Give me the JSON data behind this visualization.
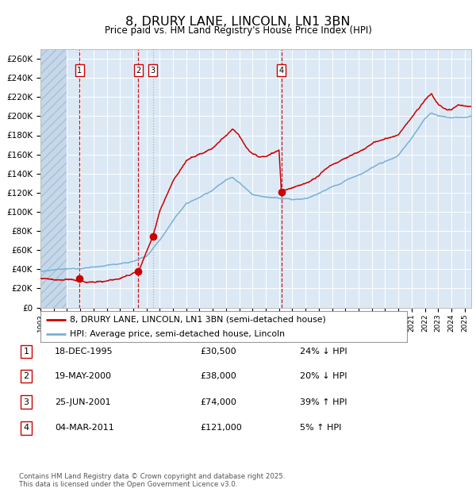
{
  "title": "8, DRURY LANE, LINCOLN, LN1 3BN",
  "subtitle": "Price paid vs. HM Land Registry's House Price Index (HPI)",
  "background_color": "#ffffff",
  "plot_bg_color": "#dce9f5",
  "grid_color": "#ffffff",
  "sale_dates_num": [
    1995.96,
    2000.38,
    2001.48,
    2011.17
  ],
  "sale_prices": [
    30500,
    38000,
    74000,
    121000
  ],
  "sale_labels": [
    "1",
    "2",
    "3",
    "4"
  ],
  "legend_line1": "8, DRURY LANE, LINCOLN, LN1 3BN (semi-detached house)",
  "legend_line2": "HPI: Average price, semi-detached house, Lincoln",
  "table_rows": [
    [
      "1",
      "18-DEC-1995",
      "£30,500",
      "24% ↓ HPI"
    ],
    [
      "2",
      "19-MAY-2000",
      "£38,000",
      "20% ↓ HPI"
    ],
    [
      "3",
      "25-JUN-2001",
      "£74,000",
      "39% ↑ HPI"
    ],
    [
      "4",
      "04-MAR-2011",
      "£121,000",
      "5% ↑ HPI"
    ]
  ],
  "footer": "Contains HM Land Registry data © Crown copyright and database right 2025.\nThis data is licensed under the Open Government Licence v3.0.",
  "ylim": [
    0,
    270000
  ],
  "yticks": [
    0,
    20000,
    40000,
    60000,
    80000,
    100000,
    120000,
    140000,
    160000,
    180000,
    200000,
    220000,
    240000,
    260000
  ],
  "red_line_color": "#cc0000",
  "blue_line_color": "#7ab0d4",
  "dot_color": "#cc0000",
  "vline_color_red": "#cc0000",
  "vline_color_gray": "#aaaaaa",
  "xmin": 1993.0,
  "xmax": 2025.5,
  "hpi_keypoints": [
    [
      1993.0,
      38000
    ],
    [
      1995.0,
      40000
    ],
    [
      1996.0,
      41000
    ],
    [
      1997.0,
      43000
    ],
    [
      1998.0,
      44500
    ],
    [
      1999.0,
      46000
    ],
    [
      2000.0,
      49000
    ],
    [
      2001.0,
      54000
    ],
    [
      2002.0,
      70000
    ],
    [
      2003.0,
      90000
    ],
    [
      2004.0,
      108000
    ],
    [
      2005.0,
      115000
    ],
    [
      2006.0,
      122000
    ],
    [
      2007.0,
      133000
    ],
    [
      2007.5,
      135000
    ],
    [
      2008.0,
      130000
    ],
    [
      2009.0,
      118000
    ],
    [
      2010.0,
      116000
    ],
    [
      2011.0,
      115000
    ],
    [
      2012.0,
      114000
    ],
    [
      2013.0,
      116000
    ],
    [
      2014.0,
      120000
    ],
    [
      2015.0,
      127000
    ],
    [
      2016.0,
      133000
    ],
    [
      2017.0,
      140000
    ],
    [
      2018.0,
      148000
    ],
    [
      2019.0,
      154000
    ],
    [
      2020.0,
      160000
    ],
    [
      2021.0,
      178000
    ],
    [
      2022.0,
      198000
    ],
    [
      2022.5,
      204000
    ],
    [
      2023.0,
      200000
    ],
    [
      2024.0,
      198000
    ],
    [
      2025.5,
      200000
    ]
  ],
  "red_keypoints": [
    [
      1993.0,
      30500
    ],
    [
      1995.96,
      30500
    ],
    [
      1996.5,
      30200
    ],
    [
      1997.0,
      30500
    ],
    [
      1998.0,
      31000
    ],
    [
      1999.0,
      33000
    ],
    [
      2000.38,
      38000
    ],
    [
      2001.48,
      74000
    ],
    [
      2002.0,
      100000
    ],
    [
      2003.0,
      130000
    ],
    [
      2004.0,
      152000
    ],
    [
      2005.0,
      160000
    ],
    [
      2006.0,
      165000
    ],
    [
      2007.0,
      178000
    ],
    [
      2007.5,
      185000
    ],
    [
      2008.0,
      178000
    ],
    [
      2008.5,
      168000
    ],
    [
      2009.0,
      162000
    ],
    [
      2009.5,
      158000
    ],
    [
      2010.0,
      160000
    ],
    [
      2010.5,
      163000
    ],
    [
      2011.0,
      165000
    ],
    [
      2011.17,
      121000
    ],
    [
      2011.5,
      122000
    ],
    [
      2012.0,
      124000
    ],
    [
      2013.0,
      130000
    ],
    [
      2014.0,
      137000
    ],
    [
      2015.0,
      148000
    ],
    [
      2016.0,
      155000
    ],
    [
      2017.0,
      162000
    ],
    [
      2018.0,
      172000
    ],
    [
      2019.0,
      178000
    ],
    [
      2020.0,
      182000
    ],
    [
      2021.0,
      200000
    ],
    [
      2022.0,
      218000
    ],
    [
      2022.5,
      225000
    ],
    [
      2023.0,
      215000
    ],
    [
      2023.5,
      210000
    ],
    [
      2024.0,
      208000
    ],
    [
      2024.5,
      213000
    ],
    [
      2025.0,
      212000
    ],
    [
      2025.5,
      210000
    ]
  ]
}
